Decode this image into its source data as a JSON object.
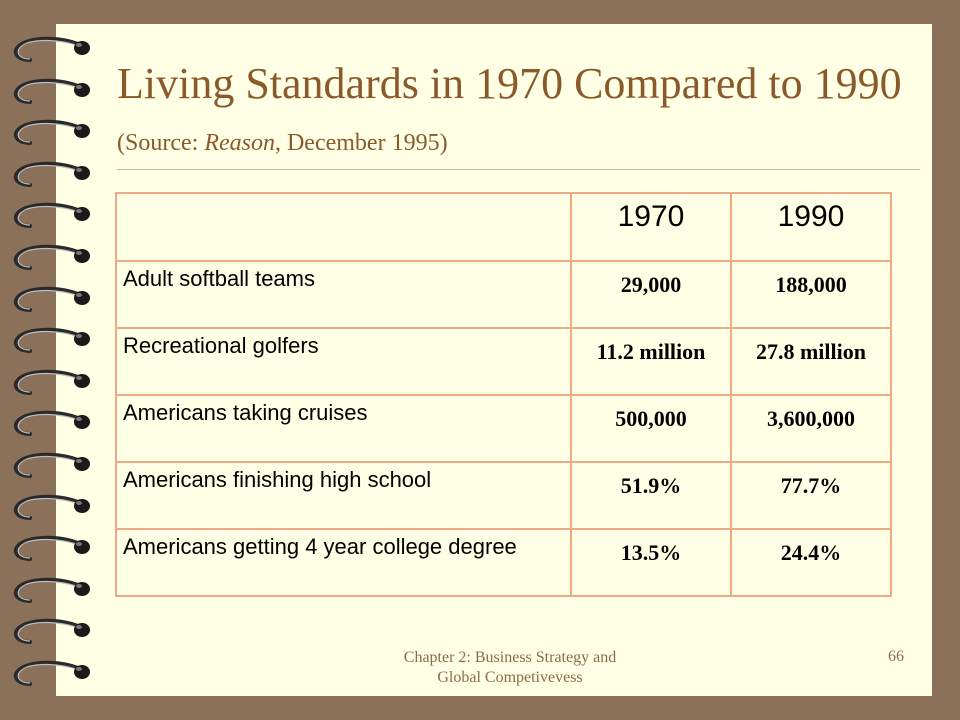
{
  "slide": {
    "title_main": "Living Standards in 1970 Compared to 1990",
    "title_source_prefix": "(Source:  ",
    "title_source_italic": "Reason",
    "title_source_suffix": ", December 1995)"
  },
  "table": {
    "columns": [
      "",
      "1970",
      "1990"
    ],
    "rows": [
      {
        "label": "Adult softball teams",
        "v1970": "29,000",
        "v1990": "188,000"
      },
      {
        "label": "Recreational golfers",
        "v1970": "11.2 million",
        "v1990": "27.8 million"
      },
      {
        "label": "Americans taking cruises",
        "v1970": "500,000",
        "v1990": "3,600,000"
      },
      {
        "label": "Americans finishing high school",
        "v1970": "51.9%",
        "v1990": "77.7%"
      },
      {
        "label": "Americans getting 4 year college degree",
        "v1970": "13.5%",
        "v1990": "24.4%"
      }
    ]
  },
  "footer": {
    "text_line1": "Chapter 2: Business Strategy and",
    "text_line2": "Global Competivevess",
    "page_number": "66"
  }
}
